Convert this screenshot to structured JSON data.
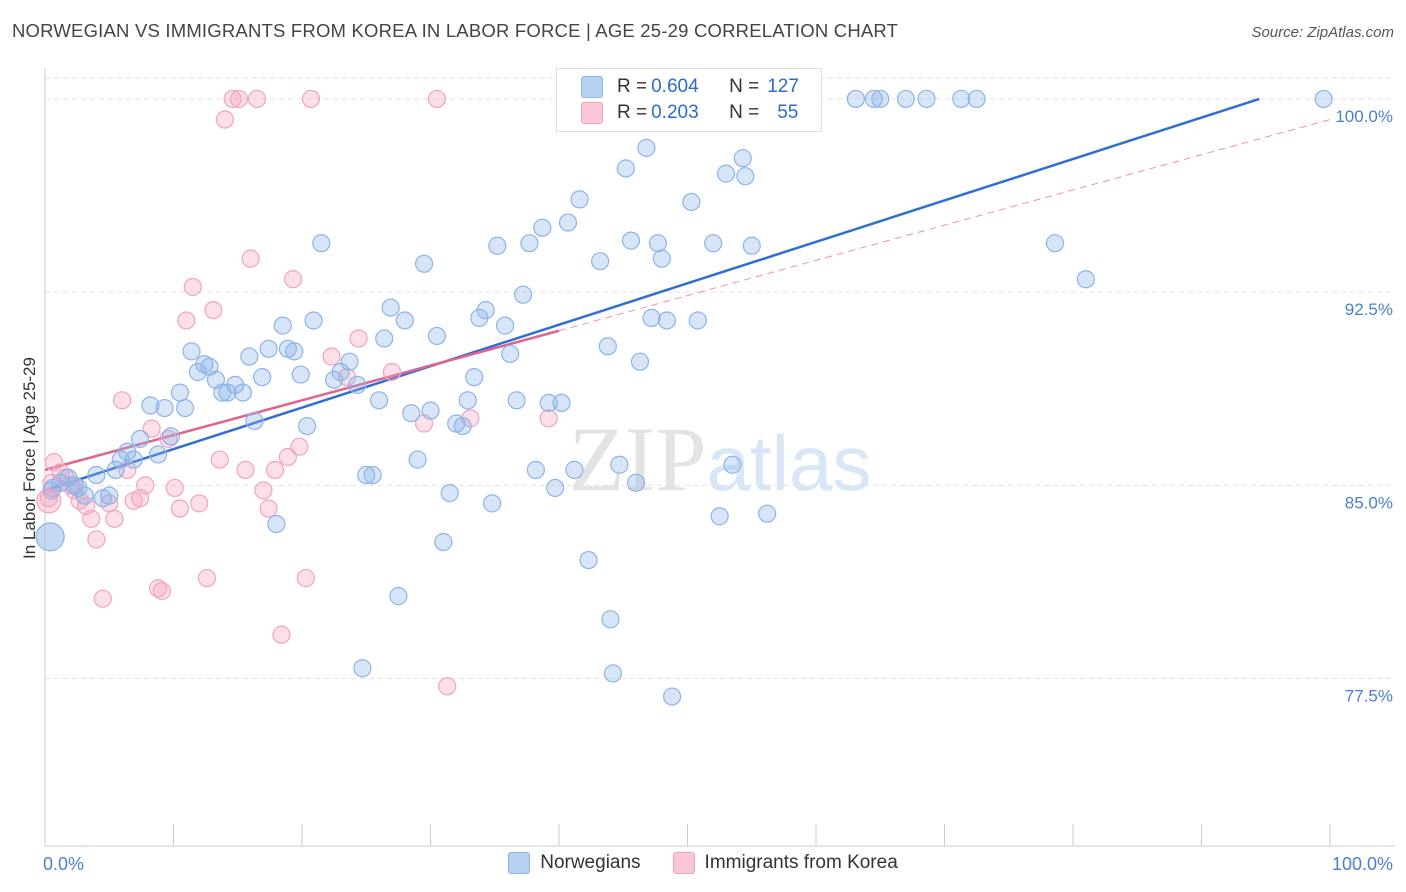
{
  "chart_data": {
    "type": "scatter",
    "title": "NORWEGIAN VS IMMIGRANTS FROM KOREA IN LABOR FORCE | AGE 25-29 CORRELATION CHART",
    "source": "Source: ZipAtlas.com",
    "xlabel": "",
    "ylabel": "In Labor Force | Age 25-29",
    "xlim": [
      0,
      100
    ],
    "ylim": [
      71.0,
      101.2
    ],
    "x_tick_labels": [
      "0.0%",
      "100.0%"
    ],
    "y_ticks": [
      77.5,
      85.0,
      92.5,
      100.0
    ],
    "y_tick_labels": [
      "77.5%",
      "85.0%",
      "92.5%",
      "100.0%"
    ],
    "grid": true,
    "watermark": "ZIPatlas",
    "legend": [
      {
        "label": "R = ",
        "r": "0.604",
        "n_label": "N = ",
        "n": "127"
      },
      {
        "label": "R = ",
        "r": "0.203",
        "n_label": "N = ",
        "n": "55"
      }
    ],
    "series": [
      {
        "name": "Norwegians",
        "color": "#8db4e8",
        "line_color": "#2f6fd0",
        "trend": {
          "x0": 0.0,
          "y0": 84.8,
          "x1": 94.5,
          "y1": 100.0
        },
        "points": [
          [
            0.5,
            84.8
          ],
          [
            0.6,
            84.9
          ],
          [
            1.2,
            85.1
          ],
          [
            1.8,
            85.3
          ],
          [
            2.3,
            85.0
          ],
          [
            2.6,
            84.9
          ],
          [
            3.1,
            84.6
          ],
          [
            4.0,
            85.4
          ],
          [
            4.5,
            84.5
          ],
          [
            5.0,
            84.6
          ],
          [
            5.5,
            85.6
          ],
          [
            5.9,
            86.0
          ],
          [
            6.4,
            86.3
          ],
          [
            6.9,
            86.0
          ],
          [
            7.4,
            86.8
          ],
          [
            8.2,
            88.1
          ],
          [
            8.8,
            86.2
          ],
          [
            9.3,
            88.0
          ],
          [
            9.8,
            86.9
          ],
          [
            10.5,
            88.6
          ],
          [
            10.9,
            88.0
          ],
          [
            11.4,
            90.2
          ],
          [
            11.9,
            89.4
          ],
          [
            12.4,
            89.7
          ],
          [
            12.8,
            89.6
          ],
          [
            13.3,
            89.1
          ],
          [
            13.8,
            88.6
          ],
          [
            14.2,
            88.6
          ],
          [
            14.8,
            88.9
          ],
          [
            15.4,
            88.6
          ],
          [
            15.9,
            90.0
          ],
          [
            16.3,
            87.5
          ],
          [
            16.9,
            89.2
          ],
          [
            17.4,
            90.3
          ],
          [
            18.0,
            83.5
          ],
          [
            18.5,
            91.2
          ],
          [
            18.9,
            90.3
          ],
          [
            19.4,
            90.2
          ],
          [
            19.9,
            89.3
          ],
          [
            20.4,
            87.3
          ],
          [
            20.9,
            91.4
          ],
          [
            21.5,
            94.4
          ],
          [
            22.5,
            89.1
          ],
          [
            23.0,
            89.4
          ],
          [
            23.7,
            89.8
          ],
          [
            24.3,
            88.9
          ],
          [
            24.7,
            77.9
          ],
          [
            25.0,
            85.4
          ],
          [
            25.5,
            85.4
          ],
          [
            26.0,
            88.3
          ],
          [
            26.4,
            90.7
          ],
          [
            26.9,
            91.9
          ],
          [
            27.5,
            80.7
          ],
          [
            28.0,
            91.4
          ],
          [
            28.5,
            87.8
          ],
          [
            29.0,
            86.0
          ],
          [
            29.5,
            93.6
          ],
          [
            30.0,
            87.9
          ],
          [
            30.5,
            90.8
          ],
          [
            31.0,
            82.8
          ],
          [
            31.5,
            84.7
          ],
          [
            32.0,
            87.4
          ],
          [
            32.5,
            87.3
          ],
          [
            32.9,
            88.3
          ],
          [
            33.4,
            89.2
          ],
          [
            33.8,
            91.5
          ],
          [
            34.3,
            91.8
          ],
          [
            34.8,
            84.3
          ],
          [
            35.2,
            94.3
          ],
          [
            35.8,
            91.2
          ],
          [
            36.2,
            90.1
          ],
          [
            36.7,
            88.3
          ],
          [
            37.2,
            92.4
          ],
          [
            37.7,
            94.4
          ],
          [
            38.2,
            85.6
          ],
          [
            38.7,
            95.0
          ],
          [
            39.2,
            88.2
          ],
          [
            39.7,
            84.9
          ],
          [
            40.2,
            88.2
          ],
          [
            40.7,
            95.2
          ],
          [
            41.2,
            85.6
          ],
          [
            41.6,
            96.1
          ],
          [
            42.3,
            82.1
          ],
          [
            43.2,
            93.7
          ],
          [
            43.8,
            90.4
          ],
          [
            44.0,
            79.8
          ],
          [
            44.2,
            77.7
          ],
          [
            44.7,
            85.8
          ],
          [
            45.2,
            97.3
          ],
          [
            45.6,
            94.5
          ],
          [
            46.0,
            85.1
          ],
          [
            46.3,
            89.8
          ],
          [
            46.8,
            98.1
          ],
          [
            47.2,
            91.5
          ],
          [
            47.7,
            94.4
          ],
          [
            48.0,
            93.8
          ],
          [
            48.4,
            91.4
          ],
          [
            48.8,
            76.8
          ],
          [
            50.3,
            96.0
          ],
          [
            50.8,
            91.4
          ],
          [
            52.0,
            94.4
          ],
          [
            52.5,
            83.8
          ],
          [
            53.0,
            97.1
          ],
          [
            53.5,
            85.8
          ],
          [
            54.3,
            97.7
          ],
          [
            54.5,
            97.0
          ],
          [
            55.0,
            94.3
          ],
          [
            56.2,
            83.9
          ],
          [
            63.1,
            100.0
          ],
          [
            64.5,
            100.0
          ],
          [
            65.0,
            100.0
          ],
          [
            67.0,
            100.0
          ],
          [
            68.6,
            100.0
          ],
          [
            71.3,
            100.0
          ],
          [
            72.5,
            100.0
          ],
          [
            78.6,
            94.4
          ],
          [
            81.0,
            93.0
          ],
          [
            99.5,
            100.0
          ]
        ]
      },
      {
        "name": "Immigrants from Korea",
        "color": "#f4a3bf",
        "line_color": "#e0648e",
        "trend": {
          "x0": 0.0,
          "y0": 85.6,
          "x1": 40.0,
          "y1": 91.0
        },
        "trend_extension": {
          "x0": 40.0,
          "y0": 91.0,
          "x1": 100.0,
          "y1": 99.2
        },
        "points": [
          [
            0.3,
            84.5
          ],
          [
            0.5,
            85.1
          ],
          [
            0.7,
            85.9
          ],
          [
            1.2,
            85.5
          ],
          [
            1.6,
            85.3
          ],
          [
            2.0,
            85.0
          ],
          [
            2.3,
            84.8
          ],
          [
            2.7,
            84.4
          ],
          [
            3.2,
            84.2
          ],
          [
            3.6,
            83.7
          ],
          [
            4.0,
            82.9
          ],
          [
            4.5,
            80.6
          ],
          [
            5.0,
            84.3
          ],
          [
            5.4,
            83.7
          ],
          [
            6.0,
            88.3
          ],
          [
            6.4,
            85.6
          ],
          [
            6.9,
            84.4
          ],
          [
            7.4,
            84.5
          ],
          [
            7.8,
            85.0
          ],
          [
            8.3,
            87.2
          ],
          [
            8.8,
            81.0
          ],
          [
            9.1,
            80.9
          ],
          [
            9.6,
            86.8
          ],
          [
            10.1,
            84.9
          ],
          [
            10.5,
            84.1
          ],
          [
            11.0,
            91.4
          ],
          [
            11.5,
            92.7
          ],
          [
            12.0,
            84.3
          ],
          [
            12.6,
            81.4
          ],
          [
            13.1,
            91.8
          ],
          [
            13.6,
            86.0
          ],
          [
            14.0,
            99.2
          ],
          [
            14.6,
            100.0
          ],
          [
            15.1,
            100.0
          ],
          [
            15.6,
            85.6
          ],
          [
            16.0,
            93.8
          ],
          [
            16.5,
            100.0
          ],
          [
            17.0,
            84.8
          ],
          [
            17.4,
            84.1
          ],
          [
            17.9,
            85.6
          ],
          [
            18.4,
            79.2
          ],
          [
            18.9,
            86.1
          ],
          [
            19.3,
            93.0
          ],
          [
            19.8,
            86.5
          ],
          [
            20.3,
            81.4
          ],
          [
            20.7,
            100.0
          ],
          [
            22.3,
            90.0
          ],
          [
            23.5,
            89.2
          ],
          [
            24.4,
            90.7
          ],
          [
            27.0,
            89.4
          ],
          [
            29.5,
            87.4
          ],
          [
            30.5,
            100.0
          ],
          [
            31.3,
            77.2
          ],
          [
            33.1,
            87.6
          ],
          [
            39.2,
            87.6
          ]
        ]
      }
    ]
  }
}
